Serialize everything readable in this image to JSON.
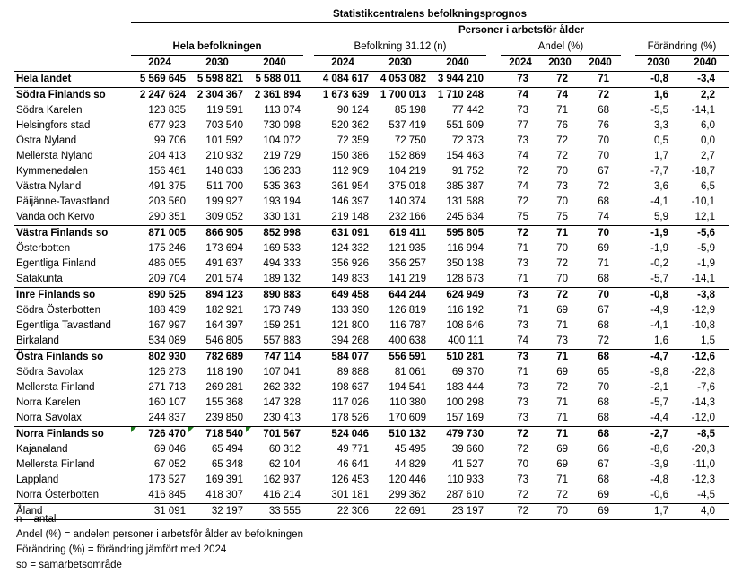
{
  "title": "Statistikcentralens befolkningsprognos",
  "group_header": "Personer i arbetsför ålder",
  "sections": {
    "total": "Hela befolkningen",
    "working_n": "Befolkning 31.12 (n)",
    "share": "Andel (%)",
    "change": "Förändring (%)"
  },
  "years": {
    "total": [
      "2024",
      "2030",
      "2040"
    ],
    "working_n": [
      "2024",
      "2030",
      "2040"
    ],
    "share": [
      "2024",
      "2030",
      "2040"
    ],
    "change": [
      "2030",
      "2040"
    ]
  },
  "rows": [
    {
      "name": "Hela landet",
      "bold": true,
      "sep": true,
      "v": [
        "5 569 645",
        "5 598 821",
        "5 588 011",
        "4 084 617",
        "4 053 082",
        "3 944 210",
        "73",
        "72",
        "71",
        "-0,8",
        "-3,4"
      ]
    },
    {
      "name": "Södra Finlands so",
      "bold": true,
      "v": [
        "2 247 624",
        "2 304 367",
        "2 361 894",
        "1 673 639",
        "1 700 013",
        "1 710 248",
        "74",
        "74",
        "72",
        "1,6",
        "2,2"
      ]
    },
    {
      "name": "Södra Karelen",
      "v": [
        "123 835",
        "119 591",
        "113 074",
        "90 124",
        "85 198",
        "77 442",
        "73",
        "71",
        "68",
        "-5,5",
        "-14,1"
      ]
    },
    {
      "name": "Helsingfors stad",
      "v": [
        "677 923",
        "703 540",
        "730 098",
        "520 362",
        "537 419",
        "551 609",
        "77",
        "76",
        "76",
        "3,3",
        "6,0"
      ]
    },
    {
      "name": "Östra Nyland",
      "v": [
        "99 706",
        "101 592",
        "104 072",
        "72 359",
        "72 750",
        "72 373",
        "73",
        "72",
        "70",
        "0,5",
        "0,0"
      ]
    },
    {
      "name": "Mellersta Nyland",
      "v": [
        "204 413",
        "210 932",
        "219 729",
        "150 386",
        "152 869",
        "154 463",
        "74",
        "72",
        "70",
        "1,7",
        "2,7"
      ]
    },
    {
      "name": "Kymmenedalen",
      "v": [
        "156 461",
        "148 033",
        "136 233",
        "112 909",
        "104 219",
        "91 752",
        "72",
        "70",
        "67",
        "-7,7",
        "-18,7"
      ]
    },
    {
      "name": "Västra Nyland",
      "v": [
        "491 375",
        "511 700",
        "535 363",
        "361 954",
        "375 018",
        "385 387",
        "74",
        "73",
        "72",
        "3,6",
        "6,5"
      ]
    },
    {
      "name": "Päijänne-Tavastland",
      "v": [
        "203 560",
        "199 927",
        "193 194",
        "146 397",
        "140 374",
        "131 588",
        "72",
        "70",
        "68",
        "-4,1",
        "-10,1"
      ]
    },
    {
      "name": "Vanda och Kervo",
      "sep": true,
      "v": [
        "290 351",
        "309 052",
        "330 131",
        "219 148",
        "232 166",
        "245 634",
        "75",
        "75",
        "74",
        "5,9",
        "12,1"
      ]
    },
    {
      "name": "Västra Finlands so",
      "bold": true,
      "v": [
        "871 005",
        "866 905",
        "852 998",
        "631 091",
        "619 411",
        "595 805",
        "72",
        "71",
        "70",
        "-1,9",
        "-5,6"
      ]
    },
    {
      "name": "Österbotten",
      "v": [
        "175 246",
        "173 694",
        "169 533",
        "124 332",
        "121 935",
        "116 994",
        "71",
        "70",
        "69",
        "-1,9",
        "-5,9"
      ]
    },
    {
      "name": "Egentliga Finland",
      "v": [
        "486 055",
        "491 637",
        "494 333",
        "356 926",
        "356 257",
        "350 138",
        "73",
        "72",
        "71",
        "-0,2",
        "-1,9"
      ]
    },
    {
      "name": "Satakunta",
      "sep": true,
      "v": [
        "209 704",
        "201 574",
        "189 132",
        "149 833",
        "141 219",
        "128 673",
        "71",
        "70",
        "68",
        "-5,7",
        "-14,1"
      ]
    },
    {
      "name": "Inre Finlands so",
      "bold": true,
      "v": [
        "890 525",
        "894 123",
        "890 883",
        "649 458",
        "644 244",
        "624 949",
        "73",
        "72",
        "70",
        "-0,8",
        "-3,8"
      ]
    },
    {
      "name": "Södra Österbotten",
      "v": [
        "188 439",
        "182 921",
        "173 749",
        "133 390",
        "126 819",
        "116 192",
        "71",
        "69",
        "67",
        "-4,9",
        "-12,9"
      ]
    },
    {
      "name": "Egentliga Tavastland",
      "v": [
        "167 997",
        "164 397",
        "159 251",
        "121 800",
        "116 787",
        "108 646",
        "73",
        "71",
        "68",
        "-4,1",
        "-10,8"
      ]
    },
    {
      "name": "Birkaland",
      "sep": true,
      "v": [
        "534 089",
        "546 805",
        "557 883",
        "394 268",
        "400 638",
        "400 111",
        "74",
        "73",
        "72",
        "1,6",
        "1,5"
      ]
    },
    {
      "name": "Östra Finlands so",
      "bold": true,
      "v": [
        "802 930",
        "782 689",
        "747 114",
        "584 077",
        "556 591",
        "510 281",
        "73",
        "71",
        "68",
        "-4,7",
        "-12,6"
      ]
    },
    {
      "name": "Södra Savolax",
      "v": [
        "126 273",
        "118 190",
        "107 041",
        "89 888",
        "81 061",
        "69 370",
        "71",
        "69",
        "65",
        "-9,8",
        "-22,8"
      ]
    },
    {
      "name": "Mellersta Finland",
      "v": [
        "271 713",
        "269 281",
        "262 332",
        "198 637",
        "194 541",
        "183 444",
        "73",
        "72",
        "70",
        "-2,1",
        "-7,6"
      ]
    },
    {
      "name": "Norra Karelen",
      "v": [
        "160 107",
        "155 368",
        "147 328",
        "117 026",
        "110 380",
        "100 298",
        "73",
        "71",
        "68",
        "-5,7",
        "-14,3"
      ]
    },
    {
      "name": "Norra Savolax",
      "sep": true,
      "v": [
        "244 837",
        "239 850",
        "230 413",
        "178 526",
        "170 609",
        "157 169",
        "73",
        "71",
        "68",
        "-4,4",
        "-12,0"
      ]
    },
    {
      "name": "Norra Finlands so",
      "bold": true,
      "flag": true,
      "v": [
        "726 470",
        "718 540",
        "701 567",
        "524 046",
        "510 132",
        "479 730",
        "72",
        "71",
        "68",
        "-2,7",
        "-8,5"
      ]
    },
    {
      "name": "Kajanaland",
      "v": [
        "69 046",
        "65 494",
        "60 312",
        "49 771",
        "45 495",
        "39 660",
        "72",
        "69",
        "66",
        "-8,6",
        "-20,3"
      ]
    },
    {
      "name": "Mellersta Finland",
      "v": [
        "67 052",
        "65 348",
        "62 104",
        "46 641",
        "44 829",
        "41 527",
        "70",
        "69",
        "67",
        "-3,9",
        "-11,0"
      ]
    },
    {
      "name": "Lappland",
      "v": [
        "173 527",
        "169 391",
        "162 937",
        "126 453",
        "120 446",
        "110 933",
        "73",
        "71",
        "68",
        "-4,8",
        "-12,3"
      ]
    },
    {
      "name": "Norra Österbotten",
      "sep": true,
      "v": [
        "416 845",
        "418 307",
        "416 214",
        "301 181",
        "299 362",
        "287 610",
        "72",
        "72",
        "69",
        "-0,6",
        "-4,5"
      ]
    },
    {
      "name": "Åland",
      "sep": true,
      "v": [
        "31 091",
        "32 197",
        "33 555",
        "22 306",
        "22 691",
        "23 197",
        "72",
        "70",
        "69",
        "1,7",
        "4,0"
      ]
    }
  ],
  "notes": [
    "n = antal",
    "Andel (%) = andelen personer i arbetsför ålder av befolkningen",
    "Förändring (%) = förändring jämfört med 2024",
    "so = samarbetsområde"
  ],
  "colors": {
    "error_indicator": "#1e7b1e"
  }
}
